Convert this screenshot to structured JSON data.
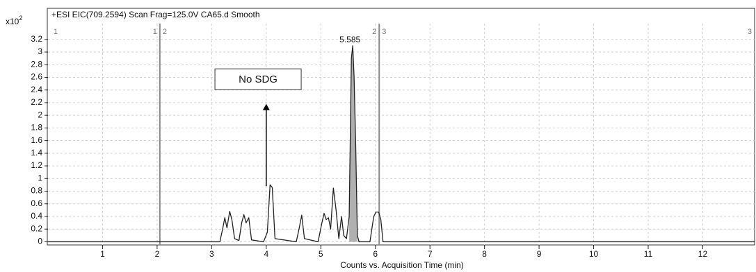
{
  "chart_data": {
    "type": "line",
    "title": "+ESI EIC(709.2594) Scan Frag=125.0V CA65.d  Smooth",
    "x_label": "Counts vs. Acquisition Time (min)",
    "y_unit": "x10",
    "y_exponent": "2",
    "color": "#222222",
    "fill_color": "#b0b0b0",
    "fill_range": [
      5.52,
      5.67
    ],
    "grid": true,
    "xlim": [
      0,
      12.95
    ],
    "ylim": [
      -0.05,
      3.45
    ],
    "xticks": [
      1,
      2,
      3,
      4,
      5,
      6,
      7,
      8,
      9,
      10,
      11,
      12
    ],
    "yticks": [
      0,
      0.2,
      0.4,
      0.6,
      0.8,
      1,
      1.2,
      1.4,
      1.6,
      1.8,
      2,
      2.2,
      2.4,
      2.6,
      2.8,
      3,
      3.2
    ],
    "x": [
      0,
      3.15,
      3.2,
      3.24,
      3.28,
      3.33,
      3.37,
      3.42,
      3.5,
      3.55,
      3.59,
      3.63,
      3.68,
      3.73,
      3.95,
      4.02,
      4.07,
      4.11,
      4.16,
      4.55,
      4.6,
      4.65,
      4.7,
      4.95,
      5.02,
      5.06,
      5.1,
      5.14,
      5.18,
      5.23,
      5.28,
      5.33,
      5.38,
      5.42,
      5.47,
      5.52,
      5.56,
      5.585,
      5.61,
      5.64,
      5.67,
      5.7,
      5.9,
      5.97,
      6.01,
      6.06,
      6.1,
      6.14,
      12.95
    ],
    "values": [
      0,
      0,
      0.2,
      0.38,
      0.22,
      0.48,
      0.35,
      0.05,
      0.02,
      0.3,
      0.43,
      0.3,
      0.38,
      0.03,
      0,
      0.15,
      0.9,
      0.86,
      0.05,
      0,
      0.2,
      0.42,
      0.05,
      0,
      0.3,
      0.45,
      0.35,
      0.38,
      0.2,
      0.85,
      0.5,
      0.05,
      0.4,
      0.1,
      0.05,
      0.4,
      2.9,
      3.1,
      2.6,
      1.5,
      0.1,
      0,
      0,
      0.4,
      0.47,
      0.47,
      0.35,
      0,
      0
    ],
    "segment_start": {
      "x": 0,
      "label": "1"
    },
    "segment_end": {
      "x": 12.95,
      "label": "3"
    },
    "dividers": [
      {
        "x": 2.05,
        "left": "1",
        "right": "2"
      },
      {
        "x": 6.07,
        "left": "2",
        "right": "3"
      }
    ],
    "peak_label": {
      "x": 5.585,
      "y": 3.1,
      "label": "5.585"
    },
    "annotation": {
      "text": "No SDG",
      "x": 3.85,
      "y": 2.57,
      "arrow_from": 0.88,
      "arrow_to": 2.18,
      "arrow_x": 4.0
    }
  }
}
